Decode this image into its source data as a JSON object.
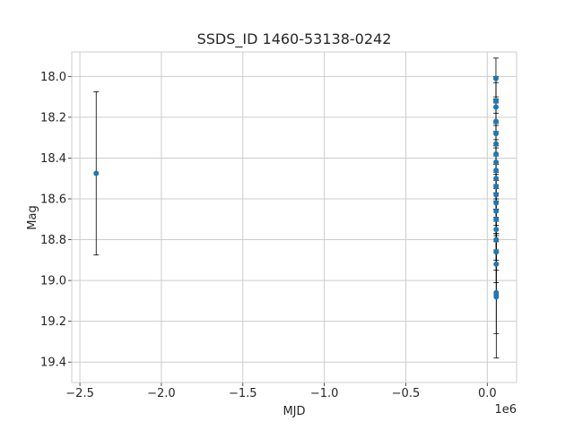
{
  "chart_data": {
    "type": "scatter",
    "title": "SSDS_ID 1460-53138-0242",
    "xlabel": "MJD",
    "ylabel": "Mag",
    "x_offset_label": "1e6",
    "xlim": [
      -2550000,
      180000
    ],
    "ylim": [
      19.5,
      17.88
    ],
    "y_inverted": true,
    "grid": true,
    "x_ticks": [
      -2500000,
      -2000000,
      -1500000,
      -1000000,
      -500000,
      0
    ],
    "x_tick_labels": [
      "−2.5",
      "−2.0",
      "−1.5",
      "−1.0",
      "−0.5",
      "0.0"
    ],
    "y_ticks": [
      18.0,
      18.2,
      18.4,
      18.6,
      18.8,
      19.0,
      19.2,
      19.4
    ],
    "y_tick_labels": [
      "18.0",
      "18.2",
      "18.4",
      "18.6",
      "18.8",
      "19.0",
      "19.2",
      "19.4"
    ],
    "marker_color": "#1f77b4",
    "errorbar_color": "#000000",
    "points": [
      {
        "x": -2400000,
        "y": 18.475,
        "err": 0.4
      },
      {
        "x": 53200,
        "y": 18.01,
        "err": 0.1
      },
      {
        "x": 53300,
        "y": 18.12,
        "err": 0.12
      },
      {
        "x": 53400,
        "y": 18.15,
        "err": 0.12
      },
      {
        "x": 53500,
        "y": 18.22,
        "err": 0.12
      },
      {
        "x": 53600,
        "y": 18.28,
        "err": 0.15
      },
      {
        "x": 53700,
        "y": 18.33,
        "err": 0.15
      },
      {
        "x": 53800,
        "y": 18.38,
        "err": 0.15
      },
      {
        "x": 53900,
        "y": 18.42,
        "err": 0.15
      },
      {
        "x": 54000,
        "y": 18.46,
        "err": 0.15
      },
      {
        "x": 54100,
        "y": 18.5,
        "err": 0.15
      },
      {
        "x": 54200,
        "y": 18.54,
        "err": 0.15
      },
      {
        "x": 54300,
        "y": 18.58,
        "err": 0.15
      },
      {
        "x": 54400,
        "y": 18.62,
        "err": 0.15
      },
      {
        "x": 54500,
        "y": 18.66,
        "err": 0.15
      },
      {
        "x": 54600,
        "y": 18.7,
        "err": 0.15
      },
      {
        "x": 54700,
        "y": 18.75,
        "err": 0.15
      },
      {
        "x": 54800,
        "y": 18.8,
        "err": 0.15
      },
      {
        "x": 54900,
        "y": 18.86,
        "err": 0.15
      },
      {
        "x": 55000,
        "y": 18.92,
        "err": 0.15
      },
      {
        "x": 55100,
        "y": 19.06,
        "err": 0.2
      },
      {
        "x": 55200,
        "y": 19.08,
        "err": 0.3
      }
    ]
  }
}
